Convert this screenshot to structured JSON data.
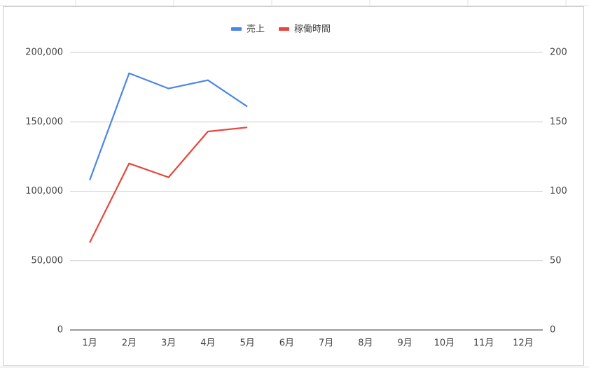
{
  "chart_data": {
    "type": "line",
    "categories": [
      "1月",
      "2月",
      "3月",
      "4月",
      "5月",
      "6月",
      "7月",
      "8月",
      "9月",
      "10月",
      "11月",
      "12月"
    ],
    "series": [
      {
        "name": "売上",
        "color": "#4a86e8",
        "values": [
          108000,
          185000,
          174000,
          180000,
          161000,
          null,
          null,
          null,
          null,
          null,
          null,
          null
        ]
      },
      {
        "name": "稼働時間",
        "color": "#e8453c",
        "axis": "y2",
        "values": [
          63,
          120,
          110,
          143,
          146,
          null,
          null,
          null,
          null,
          null,
          null,
          null
        ]
      }
    ],
    "ylim": [
      0,
      200000
    ],
    "yticks": [
      0,
      {
        "value": 50000,
        "label": "50,000"
      },
      {
        "value": 100000,
        "label": "100,000"
      },
      {
        "value": 150000,
        "label": "150,000"
      },
      {
        "value": 200000,
        "label": "200,000"
      }
    ],
    "y2lim": [
      0,
      200
    ],
    "y2ticks": [
      0,
      50,
      100,
      150,
      200
    ],
    "grid": true
  }
}
